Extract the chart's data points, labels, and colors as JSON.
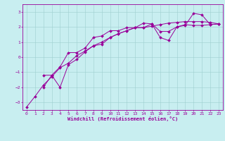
{
  "title": "",
  "xlabel": "Windchill (Refroidissement éolien,°C)",
  "ylabel": "",
  "xlim": [
    -0.5,
    23.5
  ],
  "ylim": [
    -3.5,
    3.5
  ],
  "xticks": [
    0,
    1,
    2,
    3,
    4,
    5,
    6,
    7,
    8,
    9,
    10,
    11,
    12,
    13,
    14,
    15,
    16,
    17,
    18,
    19,
    20,
    21,
    22,
    23
  ],
  "yticks": [
    -3,
    -2,
    -1,
    0,
    1,
    2,
    3
  ],
  "background_color": "#c8eef0",
  "line_color": "#990099",
  "grid_color": "#9ecfcf",
  "series": [
    {
      "x": [
        0,
        1,
        2,
        3,
        4,
        5,
        6,
        7,
        8,
        9,
        10,
        11,
        12,
        13,
        14,
        15,
        16,
        17,
        18,
        19,
        20,
        21,
        22,
        23
      ],
      "y": [
        -3.3,
        -2.6,
        -1.85,
        -1.3,
        -0.7,
        -0.4,
        0.1,
        0.4,
        0.75,
        1.0,
        1.3,
        1.55,
        1.75,
        1.95,
        1.95,
        2.05,
        2.15,
        2.25,
        2.3,
        2.35,
        2.35,
        2.35,
        2.3,
        2.2
      ]
    },
    {
      "x": [
        2,
        3,
        4,
        5,
        6,
        7,
        8,
        9,
        10,
        11,
        12,
        13,
        14,
        15,
        16,
        17,
        18,
        19,
        20,
        21,
        22,
        23
      ],
      "y": [
        -2.0,
        -1.2,
        -2.0,
        -0.5,
        -0.15,
        0.35,
        0.75,
        0.85,
        1.3,
        1.55,
        1.75,
        1.95,
        2.25,
        2.2,
        1.3,
        1.1,
        2.0,
        2.1,
        2.9,
        2.8,
        2.15,
        2.2
      ]
    },
    {
      "x": [
        2,
        3,
        4,
        5,
        6,
        7,
        8,
        9,
        10,
        11,
        12,
        13,
        14,
        15,
        16,
        17,
        18,
        19,
        20,
        21,
        22,
        23
      ],
      "y": [
        -1.2,
        -1.2,
        -0.65,
        0.3,
        0.3,
        0.6,
        1.3,
        1.4,
        1.75,
        1.75,
        1.95,
        1.95,
        1.95,
        2.2,
        1.7,
        1.7,
        2.0,
        2.15,
        2.1,
        2.1,
        2.15,
        2.2
      ]
    }
  ],
  "marker": "D",
  "markersize": 2.0,
  "linewidth": 0.7,
  "tick_fontsize": 4.5,
  "xlabel_fontsize": 5.0
}
